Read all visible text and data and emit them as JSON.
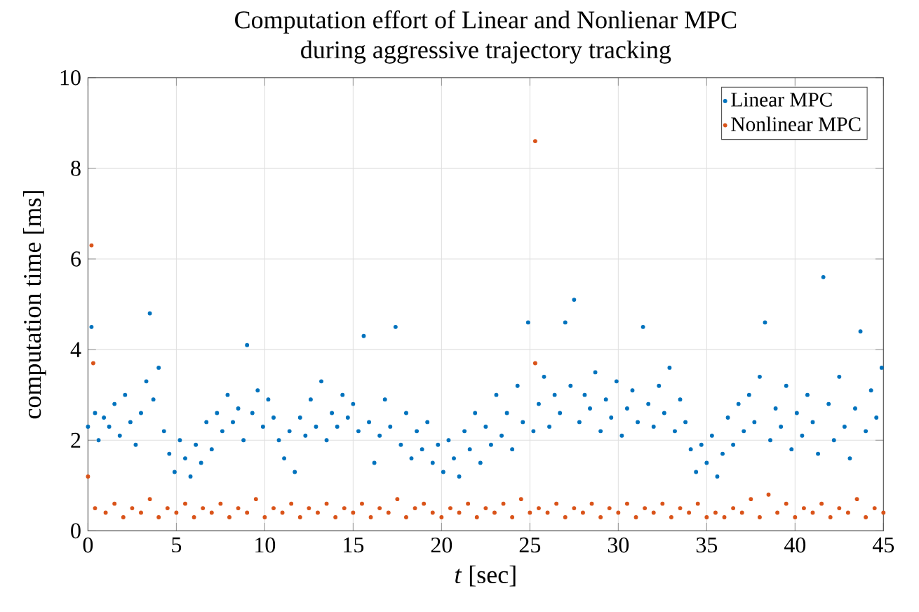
{
  "chart_data": {
    "type": "scatter",
    "title": "Computation effort of Linear and Nonlienar MPC",
    "subtitle": "during aggressive trajectory tracking",
    "xlabel": "*t* [sec]",
    "ylabel": "computation time [ms]",
    "xlim": [
      0,
      45
    ],
    "xticks": [
      0,
      5,
      10,
      15,
      20,
      25,
      30,
      35,
      40,
      45
    ],
    "ylim": [
      0,
      10
    ],
    "yticks": [
      0,
      2,
      4,
      6,
      8,
      10
    ],
    "grid": true,
    "legend": "top right",
    "marker": "circle",
    "series": [
      {
        "name": "Linear MPC",
        "color": "#0072bd",
        "x": [
          0,
          0.2,
          0.4,
          0.6,
          0.9,
          1.2,
          1.5,
          1.8,
          2.1,
          2.4,
          2.7,
          3.0,
          3.3,
          3.5,
          3.7,
          4.0,
          4.3,
          4.6,
          4.9,
          5.2,
          5.5,
          5.8,
          6.1,
          6.4,
          6.7,
          7.0,
          7.3,
          7.6,
          7.9,
          8.2,
          8.5,
          8.8,
          9.0,
          9.3,
          9.6,
          9.9,
          10.2,
          10.5,
          10.8,
          11.1,
          11.4,
          11.7,
          12.0,
          12.3,
          12.6,
          12.9,
          13.2,
          13.5,
          13.8,
          14.1,
          14.4,
          14.7,
          15.0,
          15.3,
          15.6,
          15.9,
          16.2,
          16.5,
          16.8,
          17.1,
          17.4,
          17.7,
          18.0,
          18.3,
          18.6,
          18.9,
          19.2,
          19.5,
          19.8,
          20.1,
          20.4,
          20.7,
          21.0,
          21.3,
          21.6,
          21.9,
          22.2,
          22.5,
          22.8,
          23.1,
          23.4,
          23.7,
          24.0,
          24.3,
          24.6,
          24.9,
          25.2,
          25.5,
          25.8,
          26.1,
          26.4,
          26.7,
          27.0,
          27.3,
          27.5,
          27.8,
          28.1,
          28.4,
          28.7,
          29.0,
          29.3,
          29.6,
          29.9,
          30.2,
          30.5,
          30.8,
          31.1,
          31.4,
          31.7,
          32.0,
          32.3,
          32.6,
          32.9,
          33.2,
          33.5,
          33.8,
          34.1,
          34.4,
          34.7,
          35.0,
          35.3,
          35.6,
          35.9,
          36.2,
          36.5,
          36.8,
          37.1,
          37.4,
          37.7,
          38.0,
          38.3,
          38.6,
          38.9,
          39.2,
          39.5,
          39.8,
          40.1,
          40.4,
          40.7,
          41.0,
          41.3,
          41.6,
          41.9,
          42.2,
          42.5,
          42.8,
          43.1,
          43.4,
          43.7,
          44.0,
          44.3,
          44.6,
          44.9
        ],
        "values": [
          2.3,
          4.5,
          2.6,
          2.0,
          2.5,
          2.3,
          2.8,
          2.1,
          3.0,
          2.4,
          1.9,
          2.6,
          3.3,
          4.8,
          2.9,
          3.6,
          2.2,
          1.7,
          1.3,
          2.0,
          1.6,
          1.2,
          1.9,
          1.5,
          2.4,
          1.8,
          2.6,
          2.2,
          3.0,
          2.4,
          2.7,
          2.0,
          4.1,
          2.6,
          3.1,
          2.3,
          2.9,
          2.5,
          2.0,
          1.6,
          2.2,
          1.3,
          2.5,
          2.1,
          2.9,
          2.3,
          3.3,
          2.0,
          2.6,
          2.3,
          3.0,
          2.5,
          2.8,
          2.2,
          4.3,
          2.4,
          1.5,
          2.1,
          2.9,
          2.3,
          4.5,
          1.9,
          2.6,
          1.6,
          2.2,
          1.8,
          2.4,
          1.5,
          1.9,
          1.3,
          2.0,
          1.6,
          1.2,
          2.2,
          1.8,
          2.6,
          1.5,
          2.3,
          1.9,
          3.0,
          2.1,
          2.6,
          1.8,
          3.2,
          2.4,
          4.6,
          2.2,
          2.8,
          3.4,
          2.3,
          3.0,
          2.6,
          4.6,
          3.2,
          5.1,
          2.4,
          3.0,
          2.7,
          3.5,
          2.2,
          2.9,
          2.5,
          3.3,
          2.1,
          2.7,
          3.1,
          2.4,
          4.5,
          2.8,
          2.3,
          3.2,
          2.6,
          3.6,
          2.2,
          2.9,
          2.4,
          1.8,
          1.3,
          1.9,
          1.5,
          2.1,
          1.2,
          1.7,
          2.5,
          1.9,
          2.8,
          2.2,
          3.0,
          2.4,
          3.4,
          4.6,
          2.0,
          2.7,
          2.3,
          3.2,
          1.8,
          2.6,
          2.1,
          3.0,
          2.4,
          1.7,
          5.6,
          2.8,
          2.0,
          3.4,
          2.3,
          1.6,
          2.7,
          4.4,
          2.2,
          3.1,
          2.5,
          3.6
        ]
      },
      {
        "name": "Nonlinear MPC",
        "color": "#d95319",
        "x": [
          0,
          0.2,
          0.3,
          0.4,
          1.0,
          1.5,
          2.0,
          2.5,
          3.0,
          3.5,
          4.0,
          4.5,
          5.0,
          5.5,
          6.0,
          6.5,
          7.0,
          7.5,
          8.0,
          8.5,
          9.0,
          9.5,
          10.0,
          10.5,
          11.0,
          11.5,
          12.0,
          12.5,
          13.0,
          13.5,
          14.0,
          14.5,
          15.0,
          15.5,
          16.0,
          16.5,
          17.0,
          17.5,
          18.0,
          18.5,
          19.0,
          19.5,
          20.0,
          20.5,
          21.0,
          21.5,
          22.0,
          22.5,
          23.0,
          23.5,
          24.0,
          24.5,
          25.0,
          25.3,
          25.3,
          25.5,
          26.0,
          26.5,
          27.0,
          27.5,
          28.0,
          28.5,
          29.0,
          29.5,
          30.0,
          30.5,
          31.0,
          31.5,
          32.0,
          32.5,
          33.0,
          33.5,
          34.0,
          34.5,
          35.0,
          35.5,
          36.0,
          36.5,
          37.0,
          37.5,
          38.0,
          38.5,
          39.0,
          39.5,
          40.0,
          40.5,
          41.0,
          41.5,
          42.0,
          42.5,
          43.0,
          43.5,
          44.0,
          44.5,
          45.0
        ],
        "values": [
          1.2,
          6.3,
          3.7,
          0.5,
          0.4,
          0.6,
          0.3,
          0.5,
          0.4,
          0.7,
          0.3,
          0.5,
          0.4,
          0.6,
          0.3,
          0.5,
          0.4,
          0.6,
          0.3,
          0.5,
          0.4,
          0.7,
          0.3,
          0.5,
          0.4,
          0.6,
          0.3,
          0.5,
          0.4,
          0.6,
          0.3,
          0.5,
          0.4,
          0.6,
          0.3,
          0.5,
          0.4,
          0.7,
          0.3,
          0.5,
          0.6,
          0.4,
          0.3,
          0.5,
          0.4,
          0.6,
          0.3,
          0.5,
          0.4,
          0.6,
          0.3,
          0.7,
          0.4,
          8.6,
          3.7,
          0.5,
          0.4,
          0.6,
          0.3,
          0.5,
          0.4,
          0.6,
          0.3,
          0.5,
          0.4,
          0.6,
          0.3,
          0.5,
          0.4,
          0.6,
          0.3,
          0.5,
          0.4,
          0.6,
          0.3,
          0.4,
          0.3,
          0.5,
          0.4,
          0.7,
          0.3,
          0.8,
          0.4,
          0.6,
          0.3,
          0.5,
          0.4,
          0.6,
          0.3,
          0.5,
          0.4,
          0.7,
          0.3,
          0.5,
          0.4
        ]
      }
    ]
  }
}
